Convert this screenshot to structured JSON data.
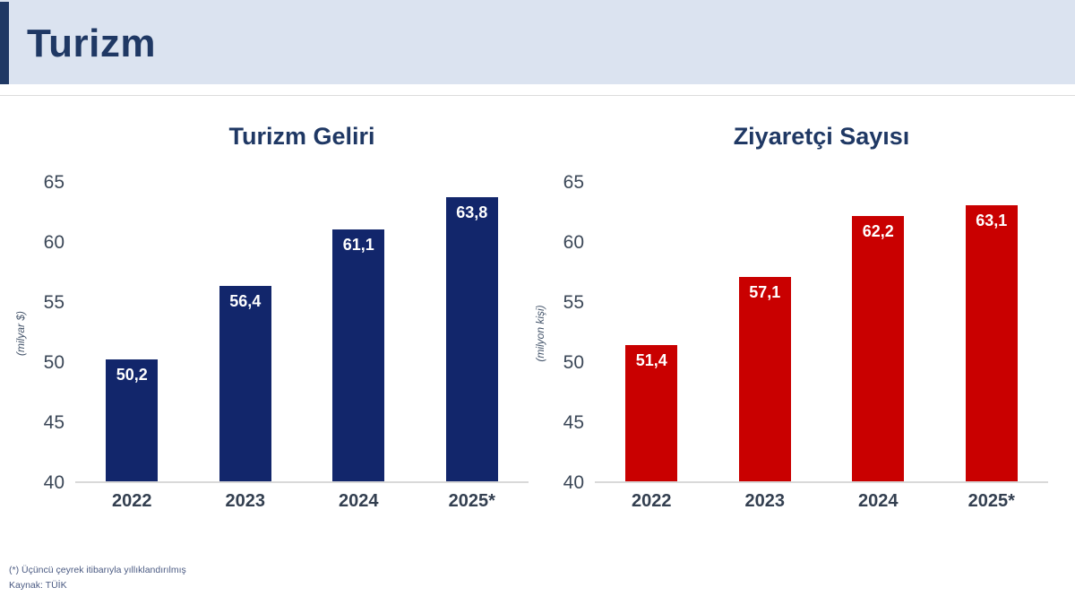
{
  "header": {
    "title": "Turizm"
  },
  "colors": {
    "accent": "#1F3864",
    "header_bg": "#DBE3F0",
    "navy_bar": "#12266B",
    "red_bar": "#C90000",
    "baseline": "#D9D9D9"
  },
  "chart_data": [
    {
      "type": "bar",
      "title": "Turizm Geliri",
      "ylabel": "(milyar $)",
      "categories": [
        "2022",
        "2023",
        "2024",
        "2025*"
      ],
      "values": [
        50.2,
        56.4,
        61.1,
        63.8
      ],
      "value_labels": [
        "50,2",
        "56,4",
        "61,1",
        "63,8"
      ],
      "bar_color": "#12266B",
      "ylim": [
        40,
        65
      ],
      "yticks": [
        65,
        60,
        55,
        50,
        45,
        40
      ],
      "grid": false,
      "legend": "none"
    },
    {
      "type": "bar",
      "title": "Ziyaretçi Sayısı",
      "ylabel": "(milyon kişi)",
      "categories": [
        "2022",
        "2023",
        "2024",
        "2025*"
      ],
      "values": [
        51.4,
        57.1,
        62.2,
        63.1
      ],
      "value_labels": [
        "51,4",
        "57,1",
        "62,2",
        "63,1"
      ],
      "bar_color": "#C90000",
      "ylim": [
        40,
        65
      ],
      "yticks": [
        65,
        60,
        55,
        50,
        45,
        40
      ],
      "grid": false,
      "legend": "none"
    }
  ],
  "footnote": {
    "line1": "(*) Üçüncü çeyrek itibarıyla yıllıklandırılmış",
    "line2": "Kaynak: TÜİK"
  }
}
